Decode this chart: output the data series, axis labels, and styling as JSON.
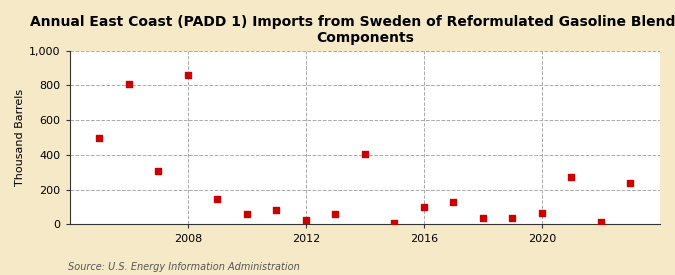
{
  "title": "Annual East Coast (PADD 1) Imports from Sweden of Reformulated Gasoline Blending\nComponents",
  "ylabel": "Thousand Barrels",
  "source": "Source: U.S. Energy Information Administration",
  "fig_background_color": "#f5e9c8",
  "plot_background_color": "#ffffff",
  "marker_color": "#cc0000",
  "years": [
    2005,
    2006,
    2007,
    2008,
    2009,
    2010,
    2011,
    2012,
    2013,
    2014,
    2015,
    2016,
    2017,
    2018,
    2019,
    2020,
    2021,
    2022,
    2023
  ],
  "values": [
    500,
    805,
    310,
    860,
    145,
    60,
    85,
    25,
    60,
    405,
    10,
    100,
    130,
    35,
    40,
    65,
    275,
    15,
    240
  ],
  "ylim": [
    0,
    1000
  ],
  "yticks": [
    0,
    200,
    400,
    600,
    800,
    1000
  ],
  "ytick_labels": [
    "0",
    "200",
    "400",
    "600",
    "800",
    "1,000"
  ],
  "xtick_positions": [
    2008,
    2012,
    2016,
    2020
  ],
  "xlim": [
    2004.0,
    2024.0
  ],
  "grid_color": "#aaaaaa",
  "grid_linestyle": "--",
  "grid_linewidth": 0.7,
  "title_fontsize": 10,
  "axis_fontsize": 8,
  "tick_fontsize": 8,
  "source_fontsize": 7,
  "marker_size": 20
}
